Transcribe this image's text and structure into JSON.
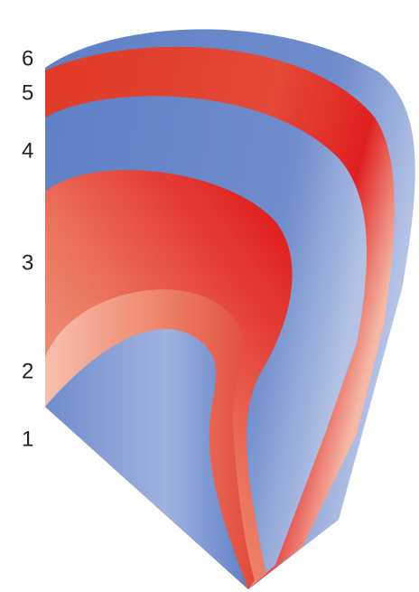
{
  "layers": [
    {
      "label": "1"
    },
    {
      "label": "2"
    },
    {
      "label": "3"
    },
    {
      "label": "4"
    },
    {
      "label": "5"
    },
    {
      "label": "6"
    }
  ]
}
